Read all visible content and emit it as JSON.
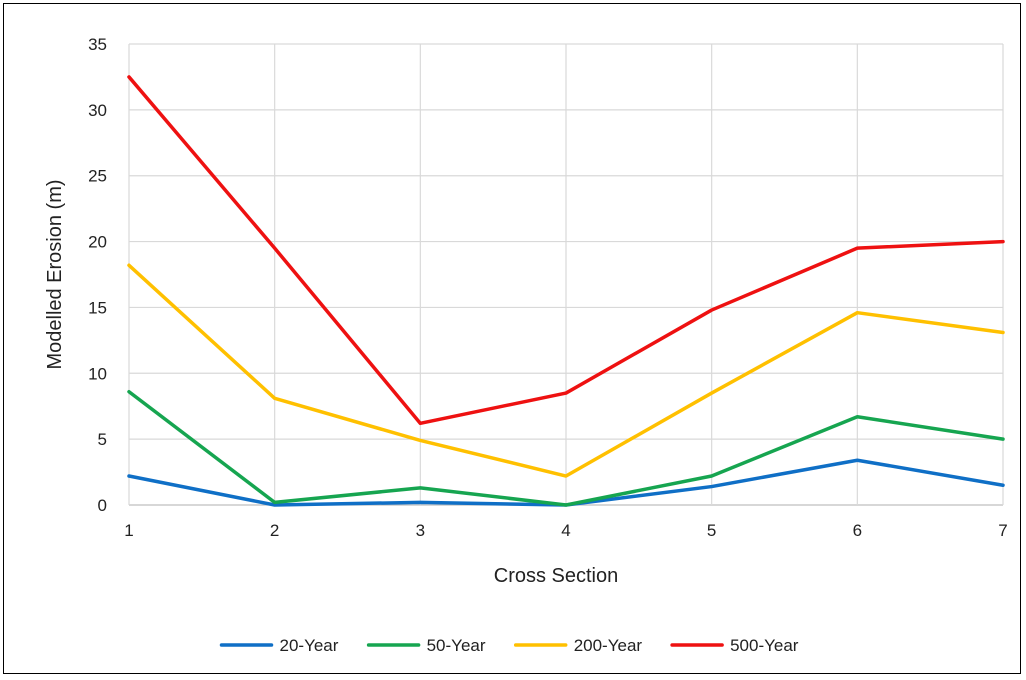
{
  "chart_data": {
    "type": "line",
    "xlabel": "Cross Section",
    "ylabel": "Modelled Erosion (m)",
    "x": [
      1,
      2,
      3,
      4,
      5,
      6,
      7
    ],
    "x_tick_labels": [
      "1",
      "2",
      "3",
      "4",
      "5",
      "6",
      "7"
    ],
    "ylim": [
      0,
      35
    ],
    "y_ticks": [
      0,
      5,
      10,
      15,
      20,
      25,
      30,
      35
    ],
    "y_tick_labels": [
      "0",
      "5",
      "10",
      "15",
      "20",
      "25",
      "30",
      "35"
    ],
    "grid": true,
    "legend_position": "bottom",
    "series": [
      {
        "name": "20-Year",
        "color": "#0f6fc6",
        "values": [
          2.2,
          0.0,
          0.2,
          0.0,
          1.4,
          3.4,
          1.5
        ]
      },
      {
        "name": "50-Year",
        "color": "#16a550",
        "values": [
          8.6,
          0.2,
          1.3,
          0.0,
          2.2,
          6.7,
          5.0
        ]
      },
      {
        "name": "200-Year",
        "color": "#ffc000",
        "values": [
          18.2,
          8.1,
          4.9,
          2.2,
          8.5,
          14.6,
          13.1
        ]
      },
      {
        "name": "500-Year",
        "color": "#ee1111",
        "values": [
          32.5,
          19.5,
          6.2,
          8.5,
          14.8,
          19.5,
          20.0
        ]
      }
    ]
  }
}
